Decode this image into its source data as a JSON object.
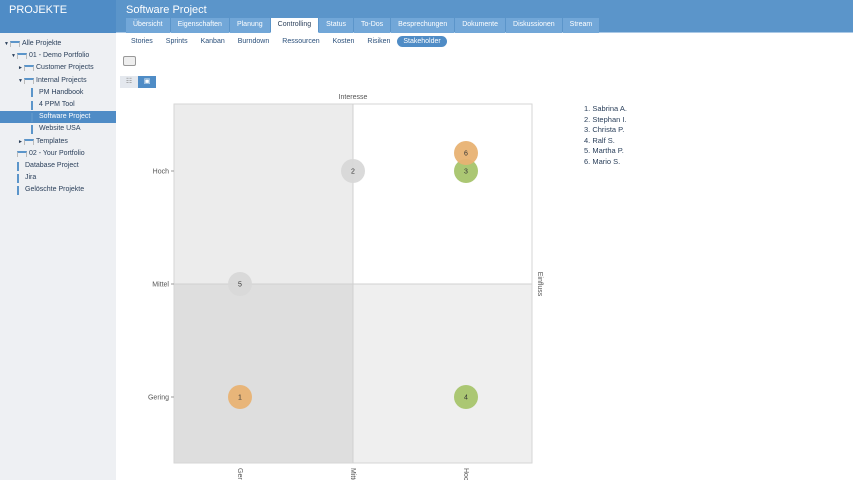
{
  "header": {
    "section": "PROJEKTE",
    "title": "Software Project"
  },
  "tabs": [
    "Übersicht",
    "Eigenschaften",
    "Planung",
    "Controlling",
    "Status",
    "To-Dos",
    "Besprechungen",
    "Dokumente",
    "Diskussionen",
    "Stream"
  ],
  "active_tab": "Controlling",
  "subnav": [
    "Stories",
    "Sprints",
    "Kanban",
    "Burndown",
    "Ressourcen",
    "Kosten",
    "Risiken",
    "Stakeholder"
  ],
  "active_subnav": "Stakeholder",
  "sidebar": [
    {
      "label": "Alle Projekte",
      "level": 0,
      "arrow": "▼",
      "icon": "folder"
    },
    {
      "label": "01 - Demo Portfolio",
      "level": 1,
      "arrow": "▼",
      "icon": "folder"
    },
    {
      "label": "Customer Projects",
      "level": 2,
      "arrow": "►",
      "icon": "folder"
    },
    {
      "label": "Internal Projects",
      "level": 2,
      "arrow": "▼",
      "icon": "folder"
    },
    {
      "label": "PM Handbook",
      "level": 3,
      "arrow": "",
      "icon": "doc"
    },
    {
      "label": "4 PPM Tool",
      "level": 3,
      "arrow": "",
      "icon": "doc"
    },
    {
      "label": "Software Project",
      "level": 3,
      "arrow": "",
      "icon": "doc",
      "selected": true
    },
    {
      "label": "Website USA",
      "level": 3,
      "arrow": "",
      "icon": "doc"
    },
    {
      "label": "Templates",
      "level": 2,
      "arrow": "►",
      "icon": "folder"
    },
    {
      "label": "02 - Your Portfolio",
      "level": 1,
      "arrow": "",
      "icon": "folder"
    },
    {
      "label": "Database Project",
      "level": 1,
      "arrow": "",
      "icon": "doc"
    },
    {
      "label": "Jira",
      "level": 1,
      "arrow": "",
      "icon": "doc"
    },
    {
      "label": "Gelöschte Projekte",
      "level": 1,
      "arrow": "",
      "icon": "trash"
    }
  ],
  "chart_data": {
    "type": "scatter",
    "xlabel": "Interesse",
    "ylabel": "Einfluss",
    "levels": [
      "Gering",
      "Mittel",
      "Hoch"
    ],
    "points": [
      {
        "id": "1",
        "x": "Gering",
        "y": "Gering",
        "color": "#e8b273"
      },
      {
        "id": "2",
        "x": "Mittel",
        "y": "Hoch",
        "color": "#d8d8d8"
      },
      {
        "id": "3",
        "x": "Hoch",
        "y": "Hoch",
        "color": "#a6c46b"
      },
      {
        "id": "4",
        "x": "Hoch",
        "y": "Gering",
        "color": "#a6c46b"
      },
      {
        "id": "5",
        "x": "Gering",
        "y": "Mittel",
        "color": "#d8d8d8"
      },
      {
        "id": "6",
        "x": "Hoch",
        "y": "Hoch",
        "color": "#e8b273"
      }
    ]
  },
  "legend": [
    "Sabrina A.",
    "Stephan I.",
    "Christa P.",
    "Ralf S.",
    "Martha P.",
    "Mario S."
  ]
}
